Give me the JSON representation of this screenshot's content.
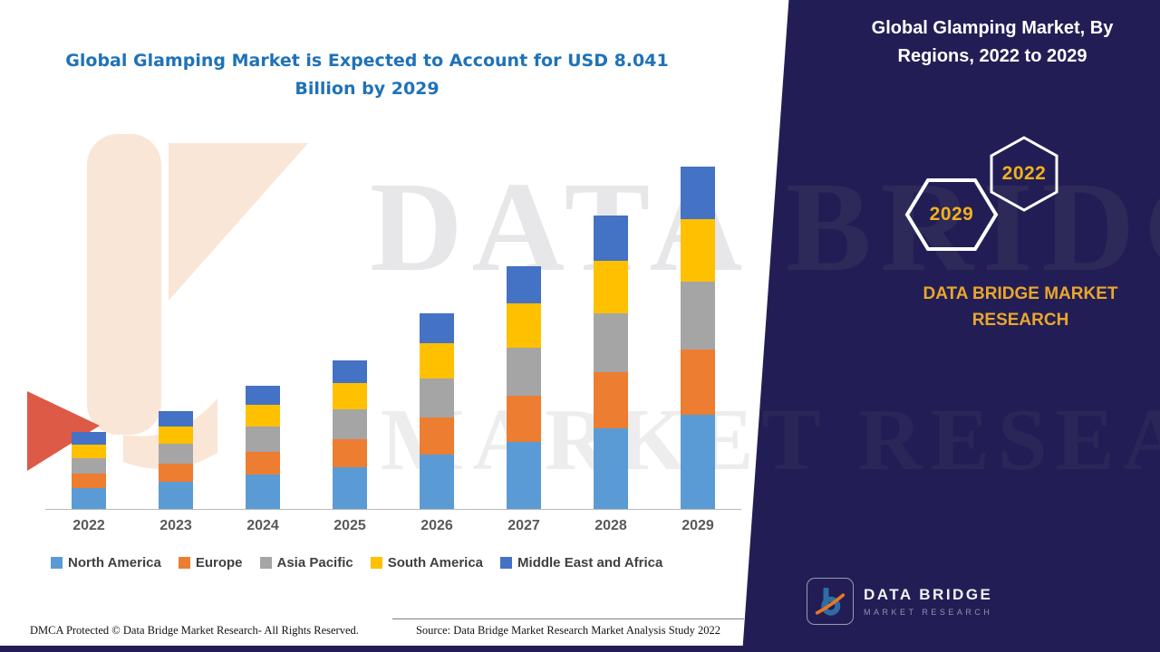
{
  "header": {
    "left_title": "Global Glamping Market is Expected to Account for USD 8.041 Billion by 2029",
    "panel_title": "Global Glamping Market, By Regions, 2022 to 2029"
  },
  "panel": {
    "badges": [
      {
        "year": "2029"
      },
      {
        "year": "2022"
      }
    ],
    "brand_title": "DATA BRIDGE MARKET RESEARCH",
    "logo": {
      "name": "DATA BRIDGE",
      "sub": "MARKET RESEARCH"
    },
    "background_color": "#221e55",
    "accent_gold": "#f2b01d"
  },
  "watermark": {
    "line1": "DATA BRIDGE",
    "line2": "MARKET RESEARCH"
  },
  "footer": {
    "dmca": "DMCA Protected © Data Bridge Market Research- All Rights Reserved.",
    "source": "Source: Data Bridge Market Research Market Analysis Study 2022"
  },
  "chart_data": {
    "type": "bar",
    "stacked": true,
    "title": "Global Glamping Market is Expected to Account for USD 8.041 Billion by 2029",
    "unit": "USD Billion",
    "categories": [
      "2022",
      "2023",
      "2024",
      "2025",
      "2026",
      "2027",
      "2028",
      "2029"
    ],
    "series": [
      {
        "name": "North America",
        "color": "#5b9bd5",
        "values": [
          0.5,
          0.63,
          0.8,
          0.97,
          1.27,
          1.57,
          1.9,
          2.21
        ]
      },
      {
        "name": "Europe",
        "color": "#ed7d31",
        "values": [
          0.34,
          0.44,
          0.55,
          0.66,
          0.87,
          1.08,
          1.31,
          1.53
        ]
      },
      {
        "name": "Asia Pacific",
        "color": "#a5a5a5",
        "values": [
          0.36,
          0.46,
          0.58,
          0.7,
          0.92,
          1.14,
          1.38,
          1.61
        ]
      },
      {
        "name": "South America",
        "color": "#ffc000",
        "values": [
          0.32,
          0.41,
          0.52,
          0.63,
          0.83,
          1.03,
          1.24,
          1.45
        ]
      },
      {
        "name": "Middle East and Africa",
        "color": "#4472c4",
        "values": [
          0.28,
          0.36,
          0.45,
          0.54,
          0.71,
          0.88,
          1.07,
          1.24
        ]
      }
    ],
    "totals": [
      1.8,
      2.3,
      2.9,
      3.5,
      4.6,
      5.7,
      6.9,
      8.041
    ],
    "xlabel": "",
    "ylabel": "",
    "ylim": [
      0,
      8.5
    ],
    "grid": false,
    "legend_position": "bottom"
  }
}
